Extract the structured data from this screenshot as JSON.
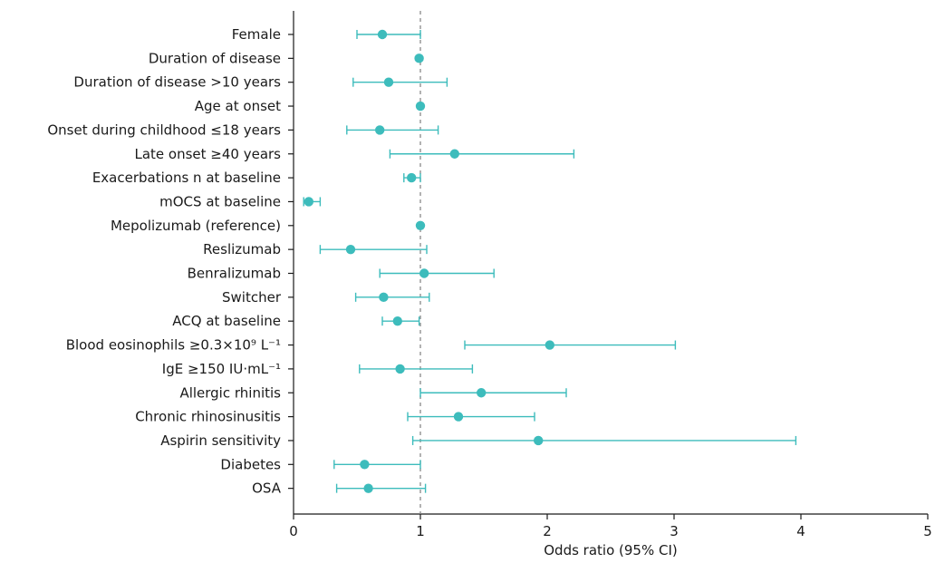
{
  "chart_data": {
    "type": "forest",
    "xlabel": "Odds ratio (95% CI)",
    "xlim": [
      0,
      5
    ],
    "xticks": [
      "0",
      "1",
      "2",
      "3",
      "4",
      "5"
    ],
    "reference_line": 1,
    "grid": false,
    "colors": {
      "point": "#3dbcbc",
      "ci": "#3dbcbc",
      "reference": "#888888",
      "axis": "#1a1a1a"
    },
    "rows": [
      {
        "label": "Female",
        "or": 0.7,
        "lower": 0.5,
        "upper": 1.0
      },
      {
        "label": "Duration of disease",
        "or": 0.99,
        "lower": null,
        "upper": null
      },
      {
        "label": "Duration of disease >10 years",
        "or": 0.75,
        "lower": 0.47,
        "upper": 1.21
      },
      {
        "label": "Age at onset",
        "or": 1.0,
        "lower": null,
        "upper": null
      },
      {
        "label": "Onset during childhood ≤18 years",
        "or": 0.68,
        "lower": 0.42,
        "upper": 1.14
      },
      {
        "label": "Late onset ≥40 years",
        "or": 1.27,
        "lower": 0.76,
        "upper": 2.21
      },
      {
        "label": "Exacerbations n at baseline",
        "or": 0.93,
        "lower": 0.87,
        "upper": 1.0
      },
      {
        "label": "mOCS at baseline",
        "or": 0.12,
        "lower": 0.08,
        "upper": 0.21
      },
      {
        "label": "Mepolizumab (reference)",
        "or": 1.0,
        "lower": null,
        "upper": null
      },
      {
        "label": "Reslizumab",
        "or": 0.45,
        "lower": 0.21,
        "upper": 1.05
      },
      {
        "label": "Benralizumab",
        "or": 1.03,
        "lower": 0.68,
        "upper": 1.58
      },
      {
        "label": "Switcher",
        "or": 0.71,
        "lower": 0.49,
        "upper": 1.07
      },
      {
        "label": "ACQ at baseline",
        "or": 0.82,
        "lower": 0.7,
        "upper": 0.99
      },
      {
        "label": "Blood eosinophils ≥0.3×10⁹ L⁻¹",
        "or": 2.02,
        "lower": 1.35,
        "upper": 3.01
      },
      {
        "label": "IgE ≥150 IU·mL⁻¹",
        "or": 0.84,
        "lower": 0.52,
        "upper": 1.41
      },
      {
        "label": "Allergic rhinitis",
        "or": 1.48,
        "lower": 1.0,
        "upper": 2.15
      },
      {
        "label": "Chronic rhinosinusitis",
        "or": 1.3,
        "lower": 0.9,
        "upper": 1.9
      },
      {
        "label": "Aspirin sensitivity",
        "or": 1.93,
        "lower": 0.94,
        "upper": 3.96
      },
      {
        "label": "Diabetes",
        "or": 0.56,
        "lower": 0.32,
        "upper": 1.0
      },
      {
        "label": "OSA",
        "or": 0.59,
        "lower": 0.34,
        "upper": 1.04
      }
    ]
  }
}
